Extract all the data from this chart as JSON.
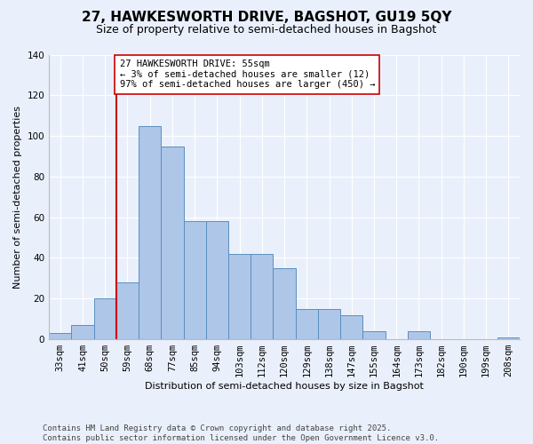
{
  "title": "27, HAWKESWORTH DRIVE, BAGSHOT, GU19 5QY",
  "subtitle": "Size of property relative to semi-detached houses in Bagshot",
  "xlabel": "Distribution of semi-detached houses by size in Bagshot",
  "ylabel": "Number of semi-detached properties",
  "categories": [
    "33sqm",
    "41sqm",
    "50sqm",
    "59sqm",
    "68sqm",
    "77sqm",
    "85sqm",
    "94sqm",
    "103sqm",
    "112sqm",
    "120sqm",
    "129sqm",
    "138sqm",
    "147sqm",
    "155sqm",
    "164sqm",
    "173sqm",
    "182sqm",
    "190sqm",
    "199sqm",
    "208sqm"
  ],
  "values": [
    3,
    7,
    20,
    28,
    105,
    95,
    58,
    58,
    42,
    42,
    35,
    15,
    15,
    12,
    4,
    0,
    4,
    0,
    0,
    0,
    1
  ],
  "bar_color": "#aec6e8",
  "bar_edge_color": "#5a8fc0",
  "ylim": [
    0,
    140
  ],
  "yticks": [
    0,
    20,
    40,
    60,
    80,
    100,
    120,
    140
  ],
  "vline_color": "#cc0000",
  "annotation_text": "27 HAWKESWORTH DRIVE: 55sqm\n← 3% of semi-detached houses are smaller (12)\n97% of semi-detached houses are larger (450) →",
  "annotation_box_color": "#ffffff",
  "annotation_box_edge": "#cc0000",
  "footnote": "Contains HM Land Registry data © Crown copyright and database right 2025.\nContains public sector information licensed under the Open Government Licence v3.0.",
  "bg_color": "#eaf0fb",
  "plot_bg_color": "#eaf0fb",
  "title_fontsize": 11,
  "subtitle_fontsize": 9,
  "axis_label_fontsize": 8,
  "tick_fontsize": 7.5,
  "annot_fontsize": 7.5,
  "footnote_fontsize": 6.5
}
